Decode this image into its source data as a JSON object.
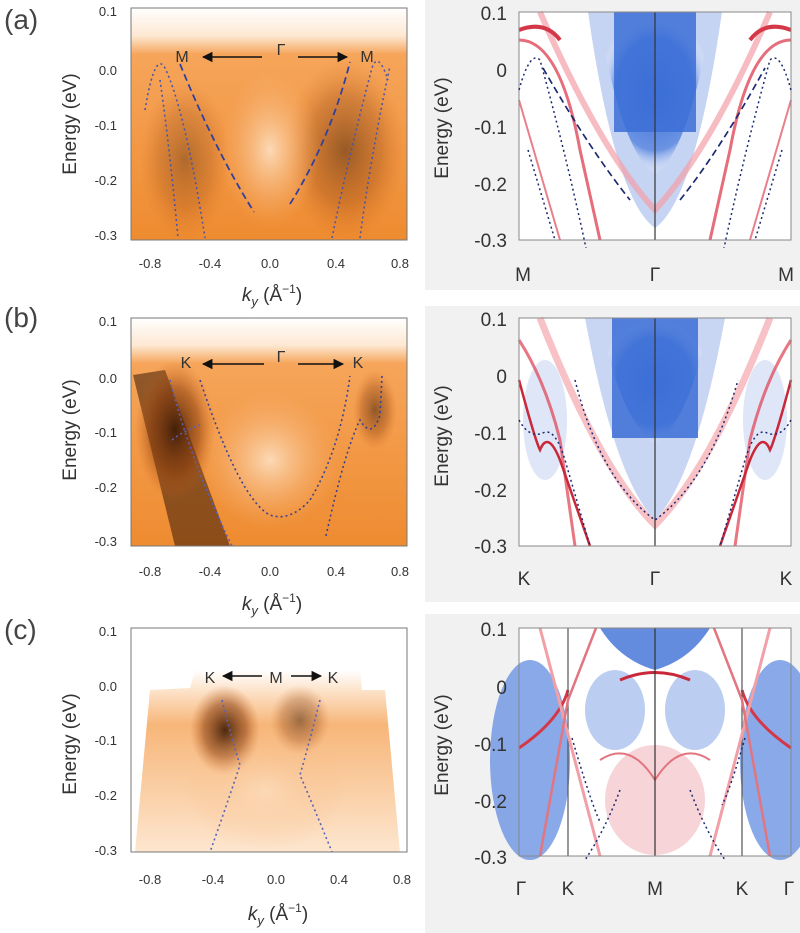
{
  "figure": {
    "panels": [
      {
        "label": "(a)",
        "arpes": {
          "direction_left": "M",
          "direction_center": "Γ",
          "direction_right": "M",
          "ylabel": "Energy (eV)",
          "xlabel_k": "k",
          "xlabel_sub": "y",
          "xlabel_unit": " (Å",
          "xlabel_exp": "−1",
          "xlabel_close": ")",
          "x_ticks": [
            "-0.8",
            "-0.4",
            "0.0",
            "0.4",
            "0.8"
          ],
          "y_ticks": [
            "0.1",
            "0.0",
            "-0.1",
            "-0.2",
            "-0.3"
          ]
        },
        "dft": {
          "ylabel": "Energy (eV)",
          "y_ticks": [
            "0.1",
            "0",
            "-0.1",
            "-0.2",
            "-0.3"
          ],
          "k_points": [
            "M",
            "Γ",
            "M"
          ]
        }
      },
      {
        "label": "(b)",
        "arpes": {
          "direction_left": "K",
          "direction_center": "Γ",
          "direction_right": "K",
          "ylabel": "Energy (eV)",
          "xlabel_k": "k",
          "xlabel_sub": "y",
          "xlabel_unit": " (Å",
          "xlabel_exp": "−1",
          "xlabel_close": ")",
          "x_ticks": [
            "-0.8",
            "-0.4",
            "0.0",
            "0.4",
            "0.8"
          ],
          "y_ticks": [
            "0.1",
            "0.0",
            "-0.1",
            "-0.2",
            "-0.3"
          ]
        },
        "dft": {
          "ylabel": "Energy (eV)",
          "y_ticks": [
            "0.1",
            "0",
            "-0.1",
            "-0.2",
            "-0.3"
          ],
          "k_points": [
            "K",
            "Γ",
            "K"
          ]
        }
      },
      {
        "label": "(c)",
        "arpes": {
          "direction_left": "K",
          "direction_center": "M",
          "direction_right": "K",
          "ylabel": "Energy (eV)",
          "xlabel_k": "k",
          "xlabel_sub": "y",
          "xlabel_unit": " (Å",
          "xlabel_exp": "−1",
          "xlabel_close": ")",
          "x_ticks": [
            "-0.8",
            "-0.4",
            "0.0",
            "0.4",
            "0.8"
          ],
          "y_ticks": [
            "0.1",
            "0.0",
            "-0.1",
            "-0.2",
            "-0.3"
          ]
        },
        "dft": {
          "ylabel": "Energy (eV)",
          "y_ticks": [
            "0.1",
            "0",
            "-0.1",
            "-0.2",
            "-0.3"
          ],
          "k_points": [
            "Γ",
            "K",
            "M",
            "K",
            "Γ"
          ]
        }
      }
    ]
  }
}
